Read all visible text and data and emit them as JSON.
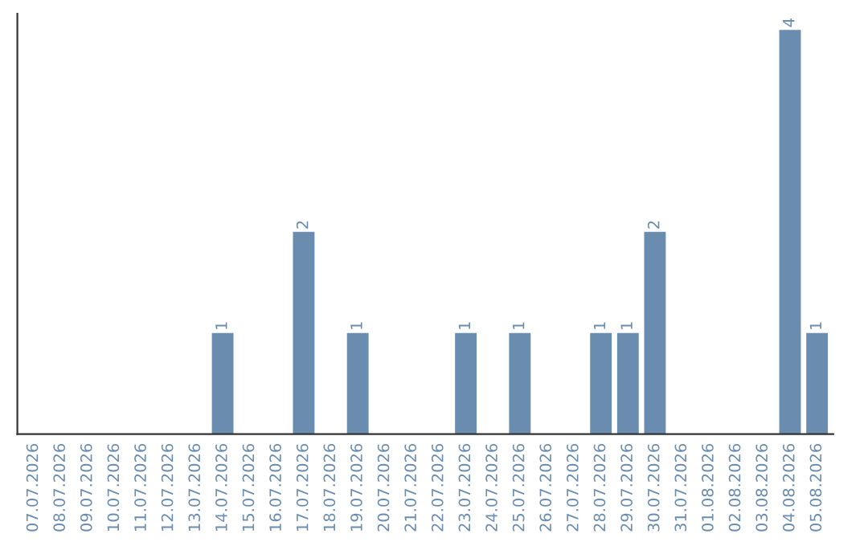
{
  "chart_data": {
    "type": "bar",
    "categories": [
      "07.07.2026",
      "08.07.2026",
      "09.07.2026",
      "10.07.2026",
      "11.07.2026",
      "12.07.2026",
      "13.07.2026",
      "14.07.2026",
      "15.07.2026",
      "16.07.2026",
      "17.07.2026",
      "18.07.2026",
      "19.07.2026",
      "20.07.2026",
      "21.07.2026",
      "22.07.2026",
      "23.07.2026",
      "24.07.2026",
      "25.07.2026",
      "26.07.2026",
      "27.07.2026",
      "28.07.2026",
      "29.07.2026",
      "30.07.2026",
      "31.07.2026",
      "01.08.2026",
      "02.08.2026",
      "03.08.2026",
      "04.08.2026",
      "05.08.2026"
    ],
    "values": [
      0,
      0,
      0,
      0,
      0,
      0,
      0,
      1,
      0,
      0,
      2,
      0,
      1,
      0,
      0,
      0,
      1,
      0,
      1,
      0,
      0,
      1,
      1,
      2,
      0,
      0,
      0,
      0,
      4,
      1
    ],
    "value_labels": [
      null,
      null,
      null,
      null,
      null,
      null,
      null,
      "1",
      null,
      null,
      "2",
      null,
      "1",
      null,
      null,
      null,
      "1",
      null,
      "1",
      null,
      null,
      "1",
      "1",
      "2",
      null,
      null,
      null,
      null,
      "4",
      "1"
    ],
    "color": "#6a8caf",
    "tick_labels": "x",
    "grid": false,
    "legend": false
  }
}
